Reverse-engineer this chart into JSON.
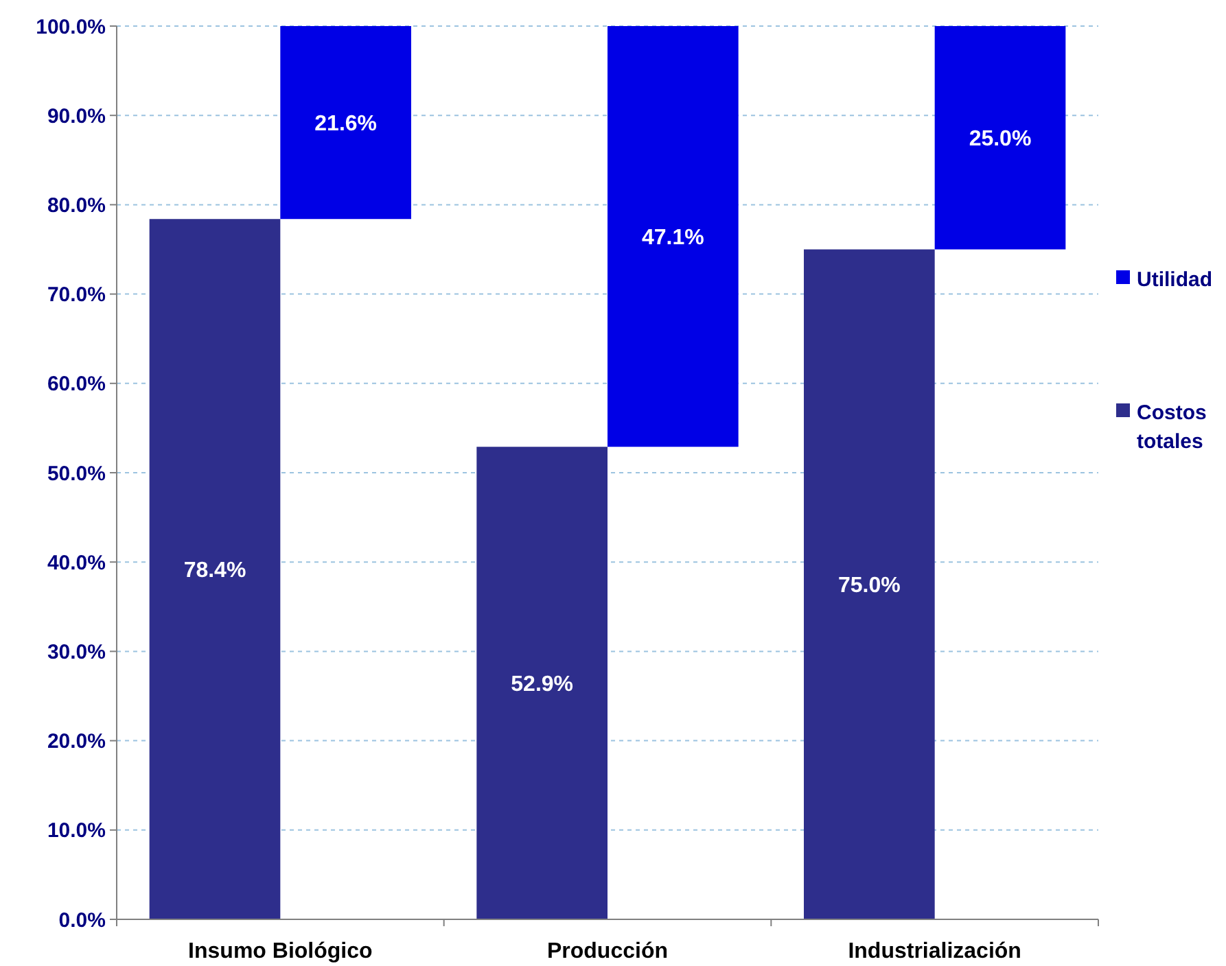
{
  "chart_data": {
    "type": "bar",
    "categories": [
      "Insumo Biológico",
      "Producción",
      "Industrialización"
    ],
    "series": [
      {
        "name": "Costos totales",
        "color": "#2e2e8c",
        "values": [
          78.4,
          52.9,
          75.0
        ],
        "value_labels": [
          "78.4%",
          "52.9%",
          "75.0%"
        ]
      },
      {
        "name": "Utilidad",
        "color": "#0000e6",
        "values": [
          21.6,
          47.1,
          25.0
        ],
        "base": [
          78.4,
          52.9,
          75.0
        ],
        "value_labels": [
          "21.6%",
          "47.1%",
          "25.0%"
        ]
      }
    ],
    "ylim": [
      0,
      100
    ],
    "yticks": [
      {
        "value": 0,
        "label": "0.0%"
      },
      {
        "value": 10,
        "label": "10.0%"
      },
      {
        "value": 20,
        "label": "20.0%"
      },
      {
        "value": 30,
        "label": "30.0%"
      },
      {
        "value": 40,
        "label": "40.0%"
      },
      {
        "value": 50,
        "label": "50.0%"
      },
      {
        "value": 60,
        "label": "60.0%"
      },
      {
        "value": 70,
        "label": "70.0%"
      },
      {
        "value": 80,
        "label": "80.0%"
      },
      {
        "value": 90,
        "label": "90.0%"
      },
      {
        "value": 100,
        "label": "100.0%"
      }
    ],
    "grid": "y",
    "legend": "right"
  }
}
